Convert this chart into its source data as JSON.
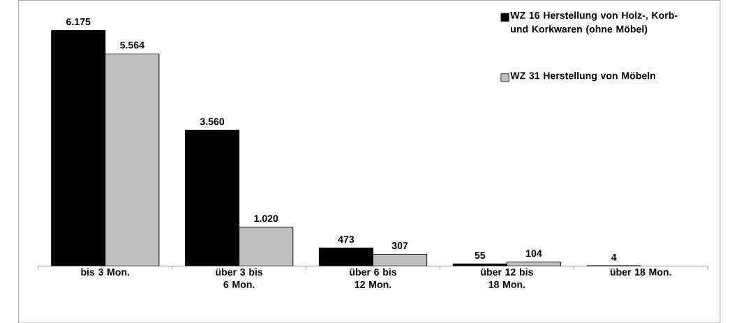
{
  "chart_data": {
    "type": "bar",
    "categories": [
      "bis 3 Mon.",
      "über 3 bis 6 Mon.",
      "über 6 bis 12 Mon.",
      "über 12 bis 18 Mon.",
      "über 18 Mon."
    ],
    "series": [
      {
        "name": "WZ 16  Herstellung von Holz-, Korb- und Korkwaren (ohne Möbel)",
        "color": "#000000",
        "values": [
          6175,
          3560,
          473,
          55,
          4
        ],
        "value_labels": [
          "6.175",
          "3.560",
          "473",
          "55",
          "4"
        ]
      },
      {
        "name": "WZ 31  Herstellung von Möbeln",
        "color": "#c0c0c0",
        "values": [
          5564,
          1020,
          307,
          104,
          null
        ],
        "value_labels": [
          "5.564",
          "1.020",
          "307",
          "104",
          null
        ]
      }
    ],
    "legend": "top right"
  }
}
